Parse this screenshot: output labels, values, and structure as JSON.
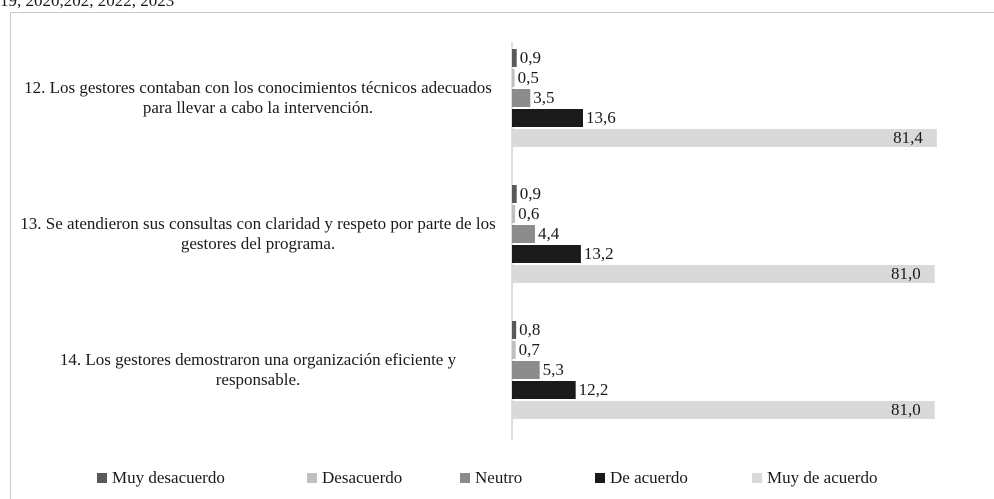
{
  "chart_data": {
    "type": "barh",
    "title": "19, 2020,202, 2022, 2023",
    "categories": [
      "12. Los gestores contaban con los conocimientos técnicos adecuados para llevar a cabo la intervención.",
      "13. Se atendieron sus consultas con claridad y respeto por parte de los gestores del programa.",
      "14. Los gestores demostraron una organización eficiente y responsable."
    ],
    "series": [
      {
        "name": "Muy desacuerdo",
        "color": "#595959",
        "values": [
          0.9,
          0.9,
          0.8
        ],
        "value_labels": [
          "0,9",
          "0,9",
          "0,8"
        ]
      },
      {
        "name": "Desacuerdo",
        "color": "#bfbfbf",
        "values": [
          0.5,
          0.6,
          0.7
        ],
        "value_labels": [
          "0,5",
          "0,6",
          "0,7"
        ]
      },
      {
        "name": "Neutro",
        "color": "#8c8c8c",
        "values": [
          3.5,
          4.4,
          5.3
        ],
        "value_labels": [
          "3,5",
          "4,4",
          "5,3"
        ]
      },
      {
        "name": "De acuerdo",
        "color": "#1a1a1a",
        "values": [
          13.6,
          13.2,
          12.2
        ],
        "value_labels": [
          "13,6",
          "13,2",
          "12,2"
        ]
      },
      {
        "name": "Muy de acuerdo",
        "color": "#d9d9d9",
        "values": [
          81.4,
          81.0,
          81.0
        ],
        "value_labels": [
          "81,4",
          "81,0",
          "81,0"
        ]
      }
    ],
    "xlim": [
      0,
      82
    ],
    "legend": "bottom"
  }
}
